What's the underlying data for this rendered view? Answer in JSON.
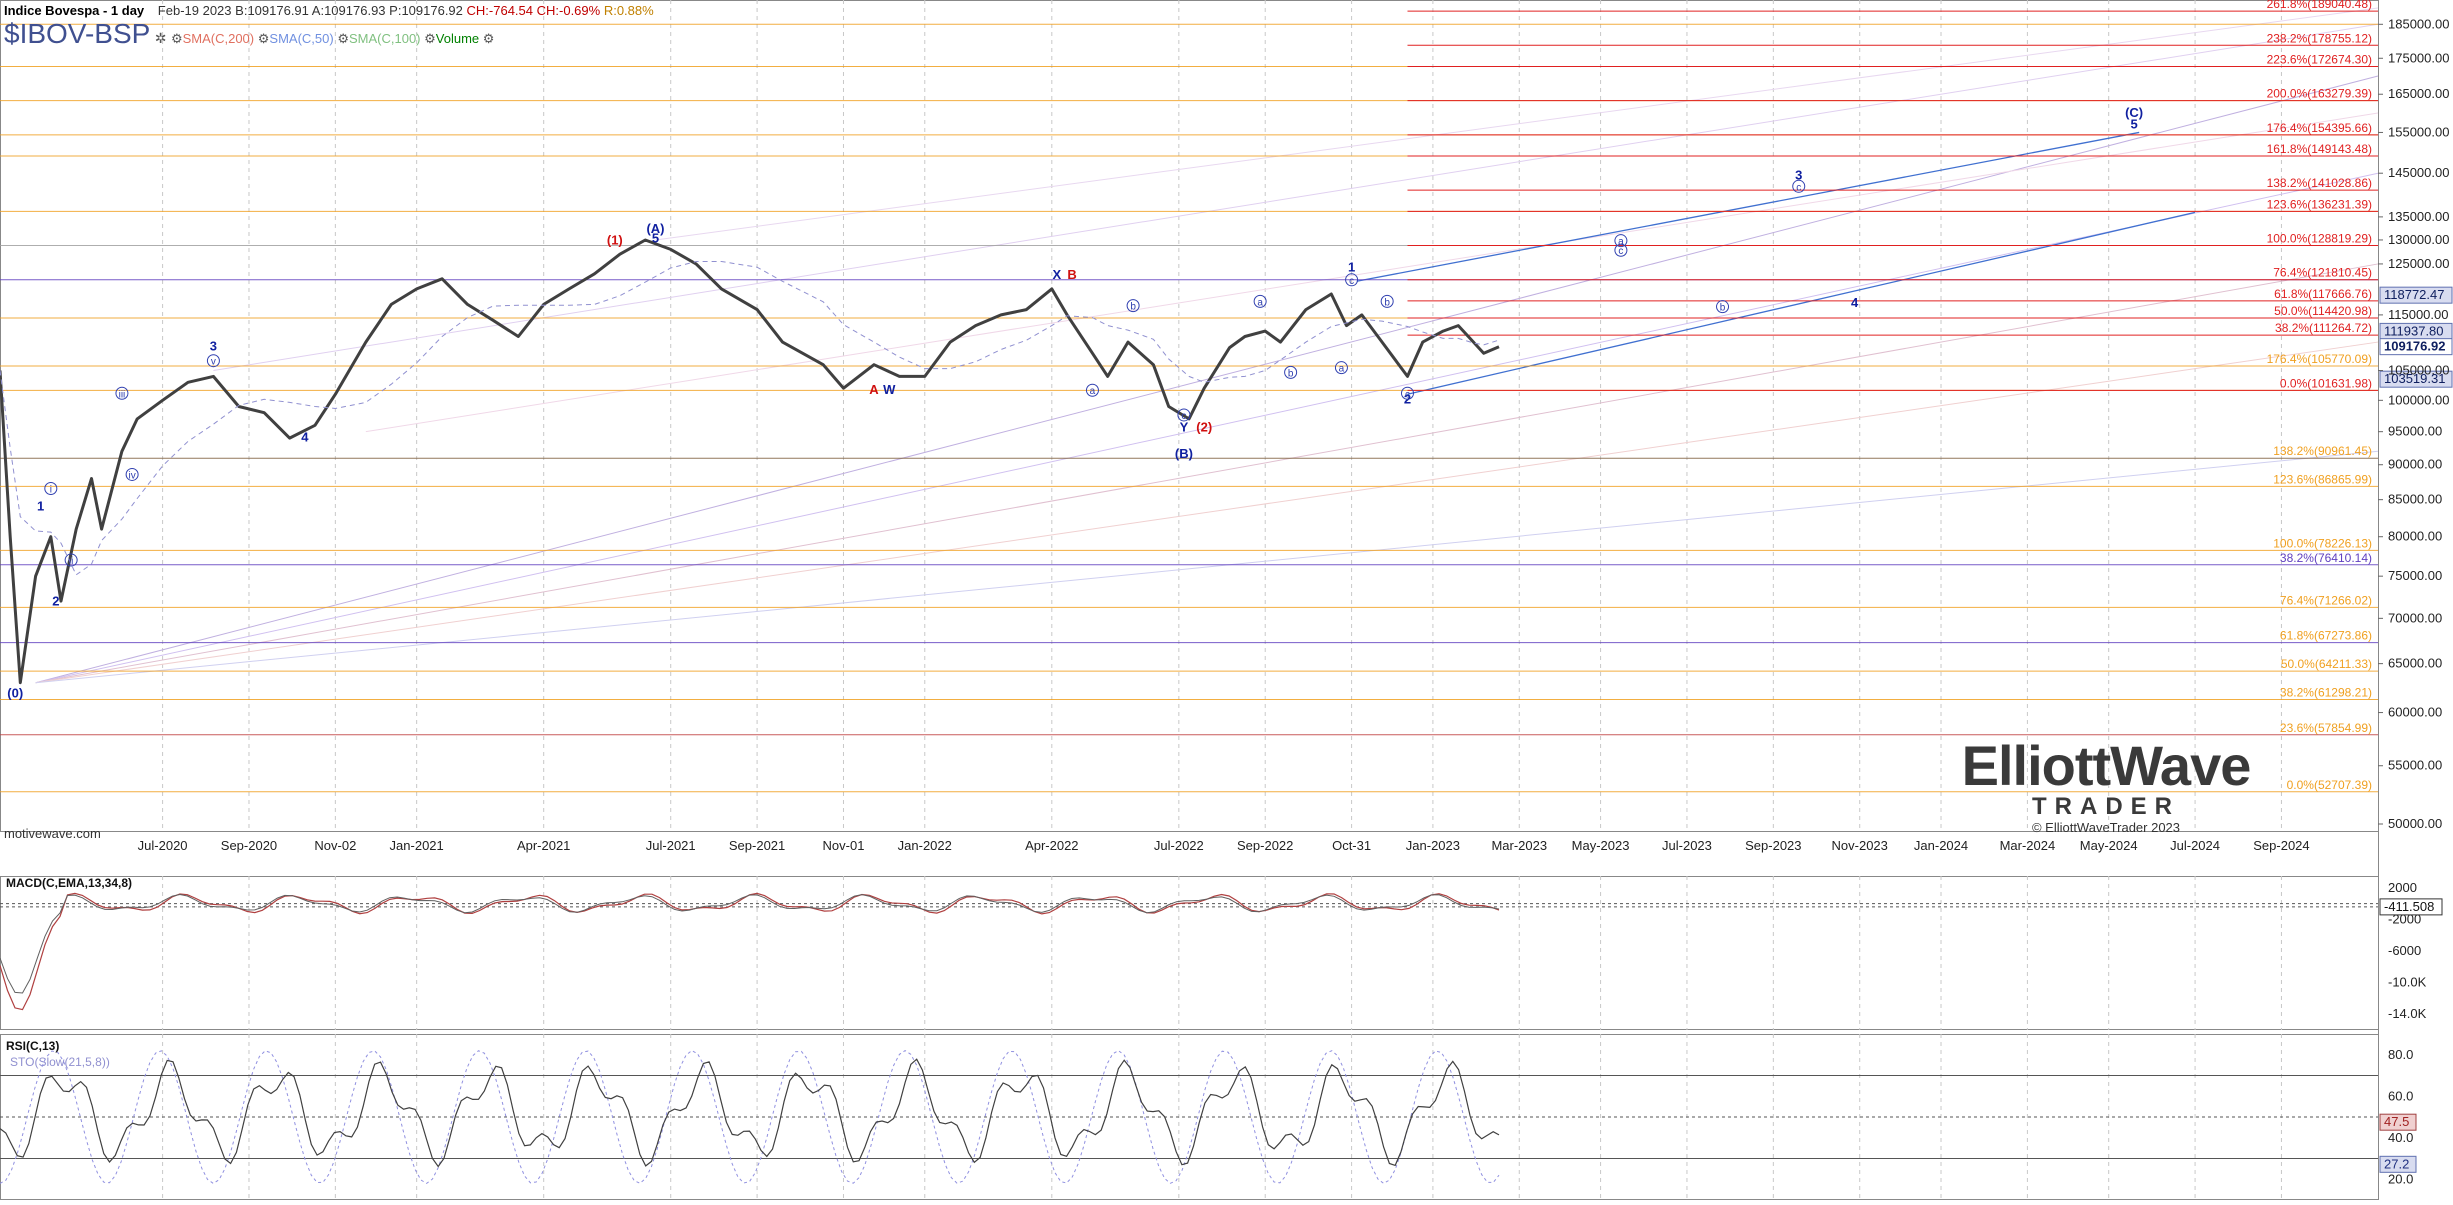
{
  "header": {
    "title": "Indice Bovespa - 1 day",
    "symbol": "$IBOV-BSP",
    "date": "Feb-19 2023",
    "bid": "B:109176.91",
    "ask": "A:109176.93",
    "price": "P:109176.92",
    "change": "CH:-764.54",
    "change_pct": "CH:-0.69%",
    "range": "R:0.88%",
    "overlays": [
      {
        "label": "SMA(C,200)",
        "color": "#e07060"
      },
      {
        "label": "SMA(C,50)",
        "color": "#7090e0"
      },
      {
        "label": "SMA(C,100)",
        "color": "#80c080"
      },
      {
        "label": "Volume",
        "color": "#008000"
      }
    ]
  },
  "watermark": {
    "brand_top": "ElliottWave",
    "brand_bottom": "TRADER",
    "copyright": "© ElliottWaveTrader 2023",
    "site": "motivewave.com"
  },
  "colors": {
    "price": "#404040",
    "fib_red": "#e02020",
    "fib_orange": "#f0a020",
    "purple": "#6040c0",
    "navy": "#1020a0",
    "red_label": "#d01010"
  },
  "chart_data": [
    {
      "type": "line",
      "name": "price",
      "ylim": [
        50000,
        190000
      ],
      "ytick_labels": [
        "185000.00",
        "175000.00",
        "165000.00",
        "155000.00",
        "145000.00",
        "135000.00",
        "130000.00",
        "125000.00",
        "115000.00",
        "105000.00",
        "100000.00",
        "95000.00",
        "90000.00",
        "85000.00",
        "80000.00",
        "75000.00",
        "70000.00",
        "65000.00",
        "60000.00",
        "55000.00",
        "50000.00"
      ],
      "yticks": [
        185000,
        175000,
        165000,
        155000,
        145000,
        135000,
        130000,
        125000,
        115000,
        105000,
        100000,
        95000,
        90000,
        85000,
        80000,
        75000,
        70000,
        65000,
        60000,
        55000,
        50000
      ],
      "xtick_labels": [
        "Jul-2020",
        "Sep-2020",
        "Nov-02",
        "Jan-2021",
        "Apr-2021",
        "Jul-2021",
        "Sep-2021",
        "Nov-01",
        "Jan-2022",
        "Apr-2022",
        "Jul-2022",
        "Sep-2022",
        "Oct-31",
        "Jan-2023",
        "Mar-2023",
        "May-2023",
        "Jul-2023",
        "Sep-2023",
        "Nov-2023",
        "Jan-2024",
        "Mar-2024",
        "May-2024",
        "Jul-2024",
        "Sep-2024"
      ],
      "xticks": [
        2020.5,
        2020.67,
        2020.84,
        2021.0,
        2021.25,
        2021.5,
        2021.67,
        2021.84,
        2022.0,
        2022.25,
        2022.5,
        2022.67,
        2022.84,
        2023.0,
        2023.17,
        2023.33,
        2023.5,
        2023.67,
        2023.84,
        2024.0,
        2024.17,
        2024.33,
        2024.5,
        2024.67
      ],
      "xlim": [
        2020.18,
        2024.86
      ],
      "price_points": [
        [
          2020.18,
          105000
        ],
        [
          2020.2,
          80000
        ],
        [
          2020.22,
          63000
        ],
        [
          2020.25,
          75000
        ],
        [
          2020.28,
          80000
        ],
        [
          2020.3,
          72000
        ],
        [
          2020.33,
          81000
        ],
        [
          2020.36,
          88000
        ],
        [
          2020.38,
          81000
        ],
        [
          2020.42,
          92000
        ],
        [
          2020.45,
          97000
        ],
        [
          2020.5,
          100000
        ],
        [
          2020.55,
          103000
        ],
        [
          2020.6,
          104000
        ],
        [
          2020.65,
          99000
        ],
        [
          2020.7,
          98000
        ],
        [
          2020.75,
          94000
        ],
        [
          2020.8,
          96000
        ],
        [
          2020.84,
          101000
        ],
        [
          2020.9,
          110000
        ],
        [
          2020.95,
          117000
        ],
        [
          2021.0,
          120000
        ],
        [
          2021.05,
          122000
        ],
        [
          2021.1,
          117000
        ],
        [
          2021.15,
          114000
        ],
        [
          2021.2,
          111000
        ],
        [
          2021.25,
          117000
        ],
        [
          2021.3,
          120000
        ],
        [
          2021.35,
          123000
        ],
        [
          2021.4,
          127000
        ],
        [
          2021.45,
          130000
        ],
        [
          2021.5,
          128000
        ],
        [
          2021.55,
          125000
        ],
        [
          2021.6,
          120000
        ],
        [
          2021.67,
          116000
        ],
        [
          2021.72,
          110000
        ],
        [
          2021.8,
          106000
        ],
        [
          2021.84,
          102000
        ],
        [
          2021.9,
          106000
        ],
        [
          2021.95,
          104000
        ],
        [
          2022.0,
          104000
        ],
        [
          2022.05,
          110000
        ],
        [
          2022.1,
          113000
        ],
        [
          2022.15,
          115000
        ],
        [
          2022.2,
          116000
        ],
        [
          2022.25,
          120000
        ],
        [
          2022.28,
          115000
        ],
        [
          2022.33,
          108000
        ],
        [
          2022.36,
          104000
        ],
        [
          2022.4,
          110000
        ],
        [
          2022.45,
          106000
        ],
        [
          2022.48,
          99000
        ],
        [
          2022.52,
          97000
        ],
        [
          2022.55,
          102000
        ],
        [
          2022.6,
          109000
        ],
        [
          2022.63,
          111000
        ],
        [
          2022.67,
          112000
        ],
        [
          2022.7,
          110000
        ],
        [
          2022.75,
          116000
        ],
        [
          2022.8,
          119000
        ],
        [
          2022.83,
          113000
        ],
        [
          2022.86,
          115000
        ],
        [
          2022.9,
          110000
        ],
        [
          2022.95,
          104000
        ],
        [
          2022.98,
          110000
        ],
        [
          2023.02,
          112000
        ],
        [
          2023.05,
          113000
        ],
        [
          2023.08,
          110000
        ],
        [
          2023.1,
          108000
        ],
        [
          2023.13,
          109177
        ]
      ],
      "last_price": "109176.92",
      "price_badges": [
        "118772.47",
        "111937.80",
        "109176.92",
        "103519.31"
      ]
    },
    {
      "type": "line",
      "name": "MACD(C,EMA,13,34,8)",
      "ylim": [
        -16000,
        3500
      ],
      "ytick_labels": [
        "2000",
        "-2000",
        "-6000",
        "-10.0K",
        "-14.0K"
      ],
      "yticks": [
        2000,
        -2000,
        -6000,
        -10000,
        -14000
      ],
      "last_value": "-411.508"
    },
    {
      "type": "line",
      "name": "RSI(C,13)",
      "subtitle": "STO(Slow(21,5,8))",
      "ylim": [
        10,
        90
      ],
      "ytick_labels": [
        "80.0",
        "60.0",
        "40.0",
        "20.0"
      ],
      "yticks": [
        80,
        60,
        40,
        20
      ],
      "badges": [
        "47.5",
        "27.2"
      ]
    }
  ],
  "fib_right_labels": [
    {
      "text": "261.8%(189040.48)",
      "y": 189040,
      "c": "red"
    },
    {
      "text": "238.2%(178755.12)",
      "y": 178755,
      "c": "red"
    },
    {
      "text": "223.6%(172674.30)",
      "y": 172674,
      "c": "red"
    },
    {
      "text": "200.0%(163279.39)",
      "y": 163279,
      "c": "red"
    },
    {
      "text": "176.4%(154395.66)",
      "y": 154396,
      "c": "red"
    },
    {
      "text": "161.8%(149143.48)",
      "y": 149143,
      "c": "red"
    },
    {
      "text": "138.2%(141028.86)",
      "y": 141029,
      "c": "red"
    },
    {
      "text": "123.6%(136231.39)",
      "y": 136231,
      "c": "red"
    },
    {
      "text": "100.0%(128819.29)",
      "y": 128819,
      "c": "red"
    },
    {
      "text": "76.4%(121810.45)",
      "y": 121810,
      "c": "red"
    },
    {
      "text": "61.8%(117666.76)",
      "y": 117667,
      "c": "red"
    },
    {
      "text": "50.0%(114420.98)",
      "y": 114421,
      "c": "red"
    },
    {
      "text": "38.2%(111264.72)",
      "y": 111265,
      "c": "red"
    },
    {
      "text": "176.4%(105770.09)",
      "y": 105770,
      "c": "orange"
    },
    {
      "text": "0.0%(101631.98)",
      "y": 101632,
      "c": "red"
    },
    {
      "text": "138.2%(90961.45)",
      "y": 90961,
      "c": "orange"
    },
    {
      "text": "123.6%(86865.99)",
      "y": 86866,
      "c": "orange"
    },
    {
      "text": "100.0%(78226.13)",
      "y": 78226,
      "c": "orange"
    },
    {
      "text": "38.2%(76410.14)",
      "y": 76410,
      "c": "purple"
    },
    {
      "text": "76.4%(71266.02)",
      "y": 71266,
      "c": "orange"
    },
    {
      "text": "61.8%(67273.86)",
      "y": 67274,
      "c": "orange"
    },
    {
      "text": "50.0%(64211.33)",
      "y": 64211,
      "c": "orange"
    },
    {
      "text": "38.2%(61298.21)",
      "y": 61298,
      "c": "orange"
    },
    {
      "text": "23.6%(57854.99)",
      "y": 57855,
      "c": "orange"
    },
    {
      "text": "0.0%(52707.39)",
      "y": 52707,
      "c": "orange"
    }
  ],
  "wave_labels": [
    {
      "t": "(0)",
      "x": 2020.21,
      "y": 61500,
      "c": "navy"
    },
    {
      "t": "1",
      "x": 2020.26,
      "y": 83500,
      "c": "navy"
    },
    {
      "t": "2",
      "x": 2020.29,
      "y": 71500,
      "c": "navy"
    },
    {
      "t": "3",
      "x": 2020.6,
      "y": 108500,
      "c": "navy"
    },
    {
      "t": "4",
      "x": 2020.78,
      "y": 93500,
      "c": "navy"
    },
    {
      "t": "(1)",
      "x": 2021.39,
      "y": 129000,
      "c": "red"
    },
    {
      "t": "(A)",
      "x": 2021.47,
      "y": 131500,
      "c": "navy"
    },
    {
      "t": "5",
      "x": 2021.47,
      "y": 129500,
      "c": "navy"
    },
    {
      "t": "A",
      "x": 2021.9,
      "y": 101000,
      "c": "red"
    },
    {
      "t": "W",
      "x": 2021.93,
      "y": 101000,
      "c": "navy"
    },
    {
      "t": "X",
      "x": 2022.26,
      "y": 122000,
      "c": "navy"
    },
    {
      "t": "B",
      "x": 2022.29,
      "y": 122000,
      "c": "red"
    },
    {
      "t": "(2)",
      "x": 2022.55,
      "y": 95000,
      "c": "red"
    },
    {
      "t": "(B)",
      "x": 2022.51,
      "y": 91000,
      "c": "navy"
    },
    {
      "t": "Y",
      "x": 2022.51,
      "y": 95000,
      "c": "navy"
    },
    {
      "t": "1",
      "x": 2022.84,
      "y": 123500,
      "c": "navy"
    },
    {
      "t": "2",
      "x": 2022.95,
      "y": 99500,
      "c": "navy"
    },
    {
      "t": "3",
      "x": 2023.72,
      "y": 143500,
      "c": "navy"
    },
    {
      "t": "4",
      "x": 2023.83,
      "y": 116500,
      "c": "navy"
    },
    {
      "t": "(C)",
      "x": 2024.38,
      "y": 159000,
      "c": "navy"
    },
    {
      "t": "5",
      "x": 2024.38,
      "y": 156000,
      "c": "navy"
    }
  ],
  "circled_labels": [
    {
      "t": "i",
      "x": 2020.28,
      "y": 86000
    },
    {
      "t": "ii",
      "x": 2020.32,
      "y": 76500
    },
    {
      "t": "iii",
      "x": 2020.42,
      "y": 100500
    },
    {
      "t": "iv",
      "x": 2020.44,
      "y": 88000
    },
    {
      "t": "v",
      "x": 2020.6,
      "y": 106000
    },
    {
      "t": "a",
      "x": 2022.33,
      "y": 101000
    },
    {
      "t": "b",
      "x": 2022.41,
      "y": 116000
    },
    {
      "t": "c",
      "x": 2022.51,
      "y": 97000
    },
    {
      "t": "a",
      "x": 2022.66,
      "y": 116800
    },
    {
      "t": "b",
      "x": 2022.72,
      "y": 104000
    },
    {
      "t": "c",
      "x": 2022.84,
      "y": 121000
    },
    {
      "t": "a",
      "x": 2022.82,
      "y": 104800
    },
    {
      "t": "b",
      "x": 2022.91,
      "y": 116800
    },
    {
      "t": "c",
      "x": 2022.95,
      "y": 100500
    },
    {
      "t": "a",
      "x": 2023.37,
      "y": 129000
    },
    {
      "t": "c",
      "x": 2023.37,
      "y": 127000
    },
    {
      "t": "b",
      "x": 2023.57,
      "y": 115800
    },
    {
      "t": "c",
      "x": 2023.72,
      "y": 141000
    }
  ]
}
